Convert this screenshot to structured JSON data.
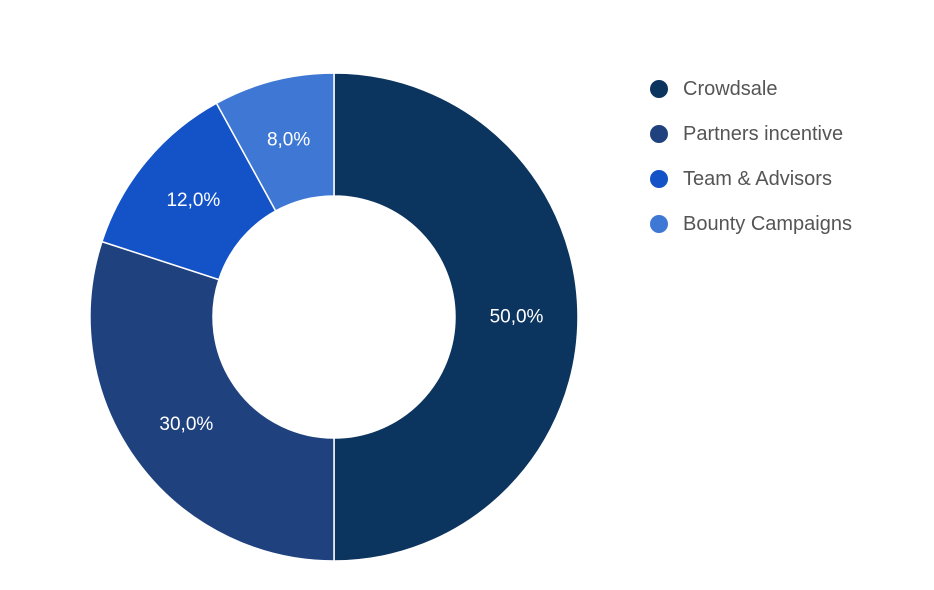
{
  "chart_data": {
    "type": "pie",
    "variant": "donut",
    "categories": [
      "Crowdsale",
      "Partners incentive",
      "Team & Advisors",
      "Bounty Campaigns"
    ],
    "values": [
      50.0,
      30.0,
      12.0,
      8.0
    ],
    "labels": [
      "50,0%",
      "30,0%",
      "12,0%",
      "8,0%"
    ],
    "colors": [
      "#0b345e",
      "#1f427f",
      "#1452c8",
      "#3f78d4"
    ],
    "legend": {
      "position": "right",
      "entries": [
        "Crowdsale",
        "Partners incentive",
        "Team & Advisors",
        "Bounty Campaigns"
      ]
    }
  }
}
